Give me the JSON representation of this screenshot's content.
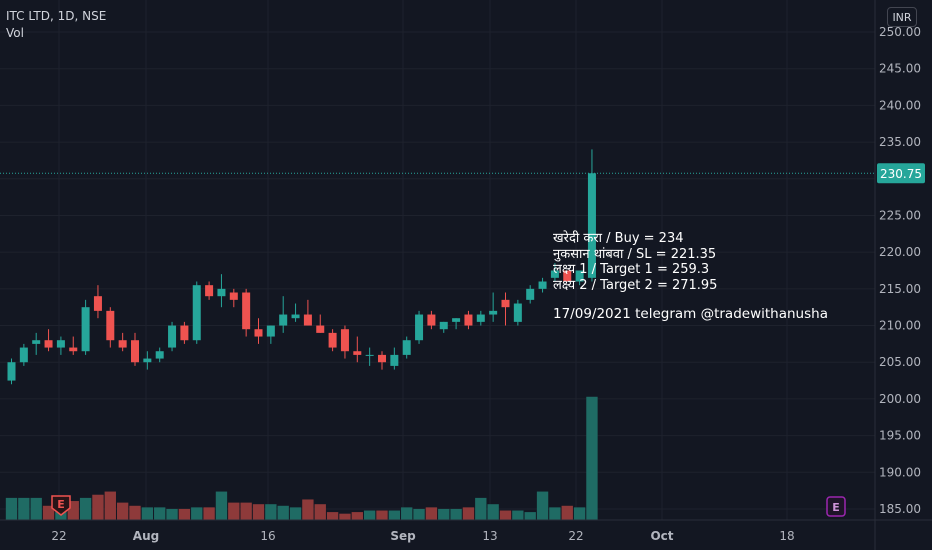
{
  "symbol_line": "ITC LTD, 1D, NSE",
  "volume_label": "Vol",
  "currency": "INR",
  "last_price_label": "230.75",
  "annotation": {
    "lines": [
      "खरेदी करा / Buy = 234",
      "नुकसान थांबवा / SL = 221.35",
      "लक्ष्य 1 / Target 1 = 259.3",
      "लक्ष्य 2 / Target 2 = 271.95"
    ],
    "signature": "17/09/2021 telegram @tradewithanusha"
  },
  "colors": {
    "up": "#26a69a",
    "down": "#ef5350",
    "background": "#131722",
    "grid": "#1e222d",
    "earnings": "#9c27b0"
  },
  "chart_data": {
    "type": "candlestick",
    "title": "ITC LTD, 1D, NSE",
    "y_axis": {
      "min": 185,
      "max": 250,
      "ticks": [
        "250.00",
        "245.00",
        "240.00",
        "235.00",
        "230.00",
        "225.00",
        "220.00",
        "215.00",
        "210.00",
        "205.00",
        "200.00",
        "195.00",
        "190.00",
        "185.00"
      ]
    },
    "x_axis": {
      "ticks": [
        "22",
        "Aug",
        "16",
        "Sep",
        "13",
        "22",
        "Oct",
        "18"
      ]
    },
    "earnings_markers": [
      "E",
      "E"
    ],
    "ohlc": [
      [
        202.5,
        205.5,
        202.0,
        205.0
      ],
      [
        205.0,
        207.5,
        204.5,
        207.0
      ],
      [
        207.5,
        209.0,
        206.0,
        208.0
      ],
      [
        208.0,
        209.5,
        206.5,
        207.0
      ],
      [
        207.0,
        208.5,
        206.0,
        208.0
      ],
      [
        207.0,
        208.5,
        206.0,
        206.5
      ],
      [
        206.5,
        213.5,
        206.0,
        212.5
      ],
      [
        214.0,
        215.5,
        211.0,
        212.0
      ],
      [
        212.0,
        212.5,
        207.0,
        208.0
      ],
      [
        208.0,
        209.0,
        206.5,
        207.0
      ],
      [
        208.0,
        209.0,
        204.5,
        205.0
      ],
      [
        205.0,
        206.5,
        204.0,
        205.5
      ],
      [
        205.5,
        207.0,
        205.0,
        206.5
      ],
      [
        207.0,
        210.5,
        206.5,
        210.0
      ],
      [
        210.0,
        210.5,
        207.5,
        208.0
      ],
      [
        208.0,
        216.0,
        207.5,
        215.5
      ],
      [
        215.5,
        216.0,
        213.5,
        214.0
      ],
      [
        214.0,
        217.0,
        212.5,
        215.0
      ],
      [
        214.5,
        215.0,
        212.5,
        213.5
      ],
      [
        214.5,
        215.0,
        208.5,
        209.5
      ],
      [
        209.5,
        211.0,
        207.5,
        208.5
      ],
      [
        208.5,
        210.0,
        207.5,
        210.0
      ],
      [
        210.0,
        214.0,
        209.0,
        211.5
      ],
      [
        211.0,
        213.0,
        210.5,
        211.5
      ],
      [
        211.5,
        213.5,
        210.0,
        210.0
      ],
      [
        210.0,
        211.5,
        209.0,
        209.0
      ],
      [
        209.0,
        209.5,
        206.5,
        207.0
      ],
      [
        209.5,
        210.0,
        205.5,
        206.5
      ],
      [
        206.5,
        208.5,
        205.0,
        206.0
      ],
      [
        206.0,
        207.0,
        204.5,
        206.0
      ],
      [
        206.0,
        206.5,
        204.0,
        205.0
      ],
      [
        204.5,
        207.0,
        204.0,
        206.0
      ],
      [
        206.0,
        208.5,
        205.5,
        208.0
      ],
      [
        208.0,
        212.0,
        207.5,
        211.5
      ],
      [
        211.5,
        212.0,
        209.5,
        210.0
      ],
      [
        209.5,
        210.5,
        209.0,
        210.5
      ],
      [
        210.5,
        211.0,
        209.5,
        211.0
      ],
      [
        211.5,
        212.0,
        209.5,
        210.0
      ],
      [
        210.5,
        212.0,
        210.0,
        211.5
      ],
      [
        211.5,
        214.5,
        210.5,
        212.0
      ],
      [
        213.5,
        214.5,
        210.0,
        212.5
      ],
      [
        210.5,
        213.5,
        210.0,
        213.0
      ],
      [
        213.5,
        215.5,
        213.0,
        215.0
      ],
      [
        215.0,
        216.5,
        214.5,
        216.0
      ],
      [
        216.5,
        218.5,
        216.0,
        217.5
      ],
      [
        217.5,
        217.5,
        216.0,
        216.0
      ],
      [
        216.0,
        217.5,
        215.5,
        217.5
      ],
      [
        216.5,
        234.0,
        216.0,
        230.75
      ]
    ],
    "volume": [
      0.7,
      0.7,
      0.7,
      0.45,
      0.5,
      0.6,
      0.7,
      0.8,
      0.9,
      0.55,
      0.45,
      0.4,
      0.4,
      0.35,
      0.35,
      0.4,
      0.4,
      0.9,
      0.55,
      0.55,
      0.5,
      0.5,
      0.45,
      0.4,
      0.65,
      0.5,
      0.25,
      0.2,
      0.25,
      0.3,
      0.3,
      0.3,
      0.4,
      0.35,
      0.4,
      0.35,
      0.35,
      0.4,
      0.7,
      0.5,
      0.3,
      0.3,
      0.25,
      0.9,
      0.4,
      0.45,
      0.4,
      3.9
    ]
  }
}
